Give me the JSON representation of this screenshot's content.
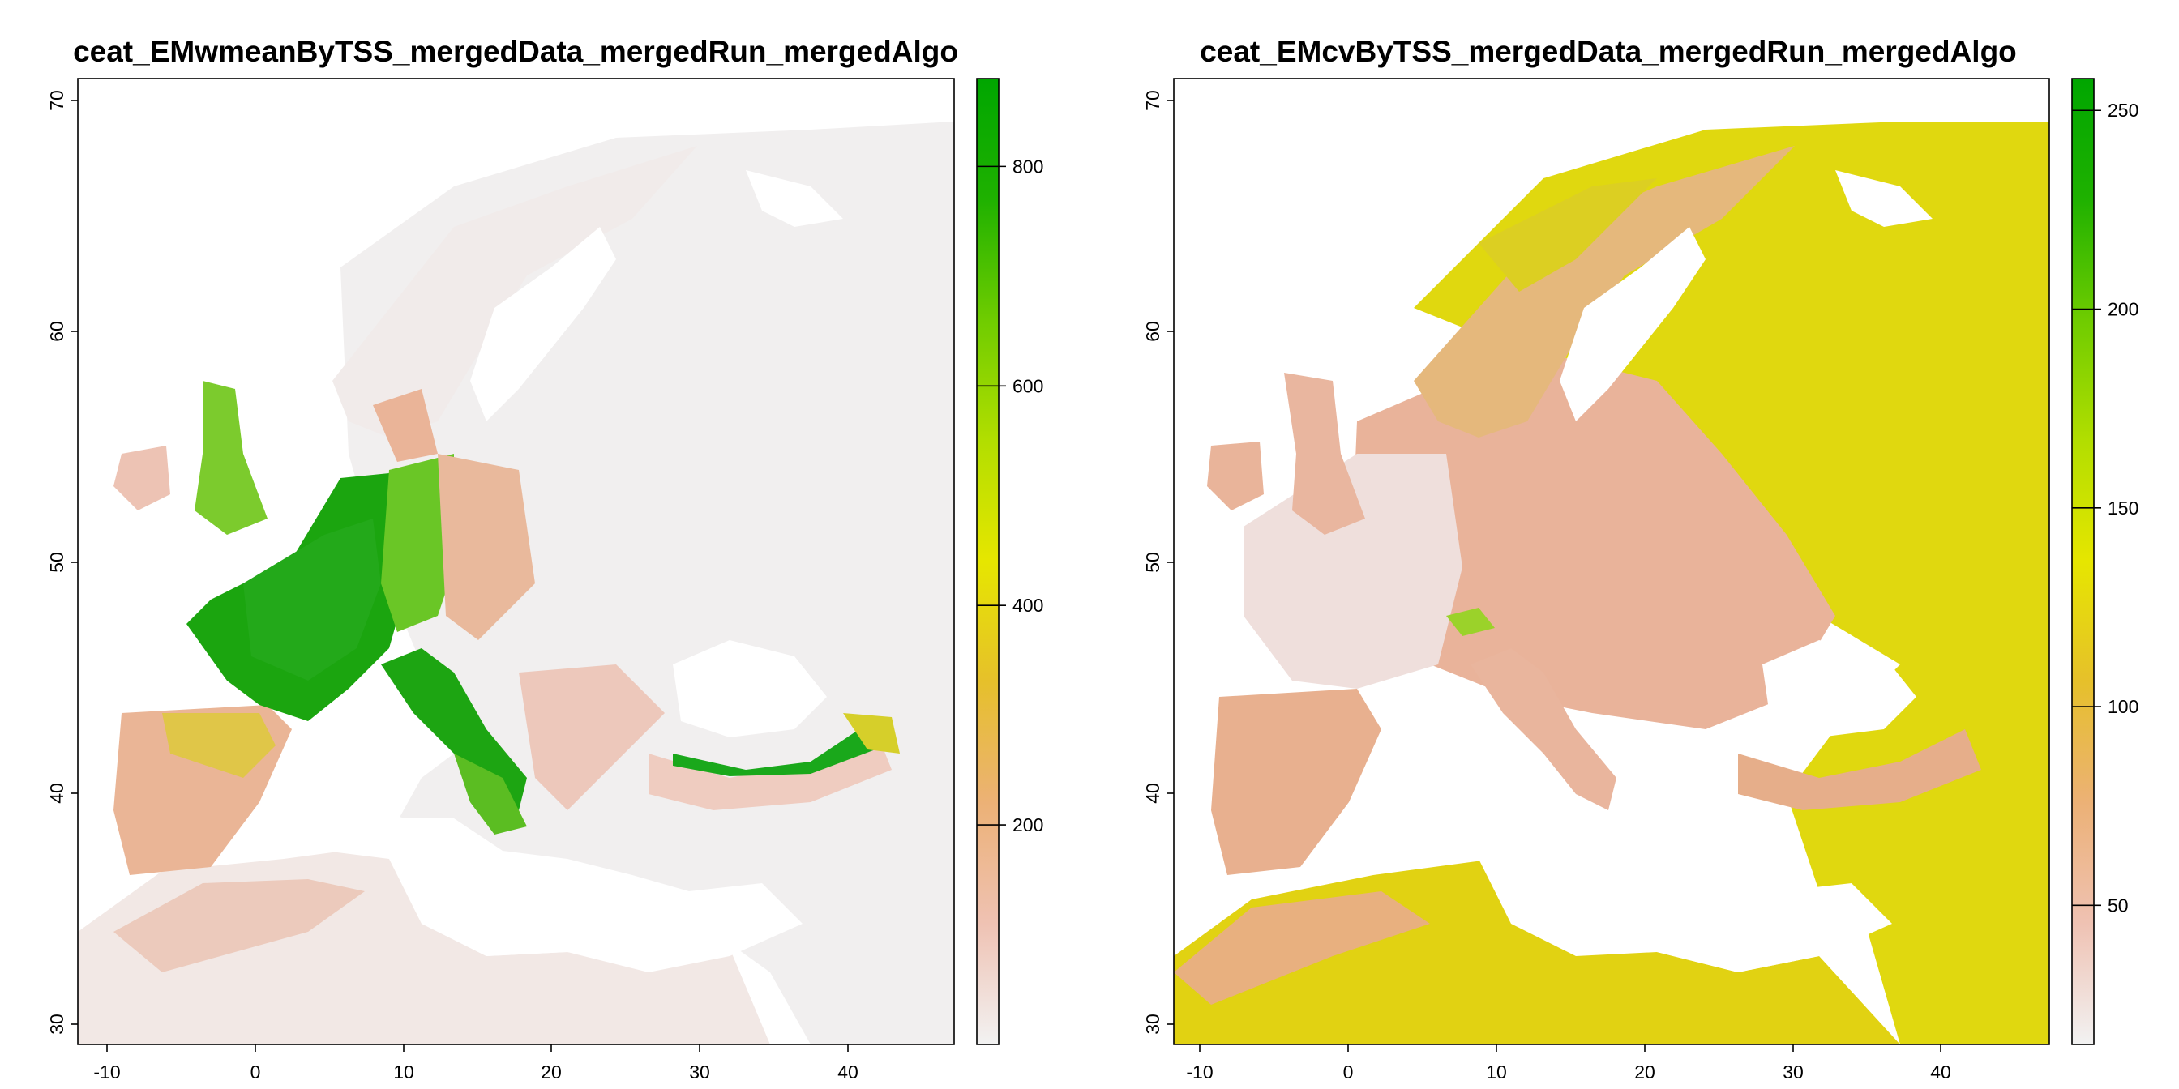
{
  "maps": [
    {
      "title": "ceat_EMwmeanByTSS_mergedData_mergedRun_mergedAlgo",
      "x_ticks": [
        -10,
        0,
        10,
        20,
        30,
        40
      ],
      "y_ticks": [
        30,
        40,
        50,
        60,
        70
      ],
      "legend_ticks": [
        200,
        400,
        600,
        800
      ],
      "legend_range": [
        0,
        880
      ],
      "legend_colors": [
        "#f2f2f2",
        "#efc2b3",
        "#ecb176",
        "#e6c02b",
        "#e6e600",
        "#b2de00",
        "#6fcc00",
        "#1fb100",
        "#00a600"
      ]
    },
    {
      "title": "ceat_EMcvByTSS_mergedData_mergedRun_mergedAlgo",
      "x_ticks": [
        -10,
        0,
        10,
        20,
        30,
        40
      ],
      "y_ticks": [
        30,
        40,
        50,
        60,
        70
      ],
      "legend_ticks": [
        50,
        100,
        150,
        200,
        250
      ],
      "legend_range": [
        15,
        258
      ],
      "legend_colors": [
        "#f2f2f2",
        "#efc2b3",
        "#ecb176",
        "#e6c02b",
        "#e6e600",
        "#b2de00",
        "#6fcc00",
        "#1fb100",
        "#00a600"
      ]
    }
  ]
}
